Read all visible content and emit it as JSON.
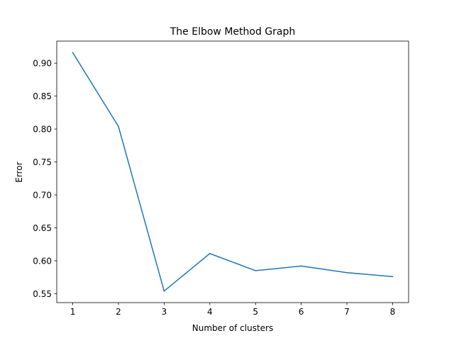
{
  "chart_data": {
    "type": "line",
    "title": "The Elbow Method Graph",
    "xlabel": "Number of clusters",
    "ylabel": "Error",
    "x": [
      1,
      2,
      3,
      4,
      5,
      6,
      7,
      8
    ],
    "xticks": [
      "1",
      "2",
      "3",
      "4",
      "5",
      "6",
      "7",
      "8"
    ],
    "yticks": [
      "0.55",
      "0.60",
      "0.65",
      "0.70",
      "0.75",
      "0.80",
      "0.85",
      "0.90"
    ],
    "ytick_values": [
      0.55,
      0.6,
      0.65,
      0.7,
      0.75,
      0.8,
      0.85,
      0.9
    ],
    "xlim": [
      0.65,
      8.35
    ],
    "ylim": [
      0.5365,
      0.9335
    ],
    "series": [
      {
        "values": [
          0.916,
          0.804,
          0.554,
          0.611,
          0.585,
          0.592,
          0.582,
          0.576
        ],
        "color": "#1f77b4"
      }
    ],
    "grid": false,
    "legend": "none"
  }
}
